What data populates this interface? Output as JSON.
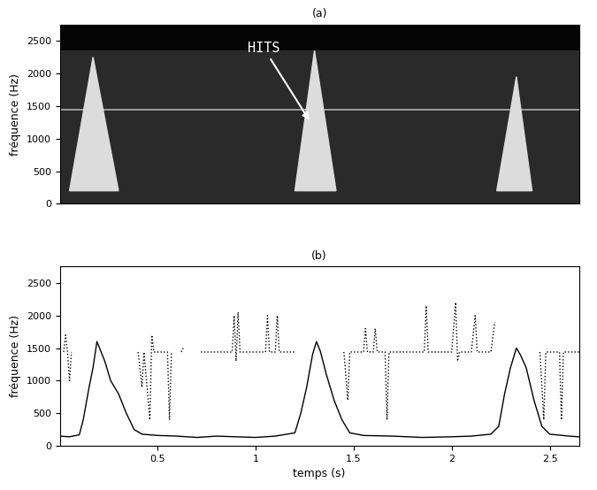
{
  "chart_data": [
    {
      "type": "spectrogram",
      "title": "(a)",
      "y_label": "fréquence (Hz)",
      "xlim": [
        0,
        2.65
      ],
      "ylim": [
        0,
        2750
      ],
      "yticks": [
        0,
        500,
        1000,
        1500,
        2000,
        2500
      ],
      "tick_labels": "y",
      "grid": false,
      "noise_top": 2350,
      "tone_frequency": 1440,
      "bursts": [
        {
          "t_start": 0.05,
          "t_peak": 0.17,
          "t_end": 0.3,
          "f_base": 200,
          "f_peak": 2250
        },
        {
          "t_start": 1.2,
          "t_peak": 1.3,
          "t_end": 1.41,
          "f_base": 200,
          "f_peak": 2350
        },
        {
          "t_start": 2.23,
          "t_peak": 2.33,
          "t_end": 2.41,
          "f_base": 200,
          "f_peak": 1950
        }
      ],
      "annotation": {
        "text": "HITS",
        "x": 1.28,
        "y": 1250
      }
    },
    {
      "type": "line",
      "title": "(b)",
      "x_label": "temps (s)",
      "y_label": "fréquence (Hz)",
      "xlim": [
        0,
        2.65
      ],
      "xticks": [
        0.5,
        1,
        1.5,
        2,
        2.5
      ],
      "ylim": [
        0,
        2750
      ],
      "yticks": [
        0,
        500,
        1000,
        1500,
        2000,
        2500
      ],
      "grid": false,
      "series": [
        {
          "color": "#000000",
          "line_style": "solid",
          "x": [
            0.0,
            0.05,
            0.1,
            0.12,
            0.15,
            0.17,
            0.19,
            0.21,
            0.23,
            0.26,
            0.3,
            0.34,
            0.38,
            0.42,
            0.5,
            0.6,
            0.7,
            0.8,
            0.9,
            1.0,
            1.1,
            1.2,
            1.23,
            1.26,
            1.29,
            1.31,
            1.33,
            1.36,
            1.4,
            1.44,
            1.48,
            1.55,
            1.7,
            1.85,
            2.0,
            2.1,
            2.2,
            2.24,
            2.27,
            2.3,
            2.33,
            2.35,
            2.38,
            2.42,
            2.46,
            2.5,
            2.6,
            2.65
          ],
          "values": [
            150,
            140,
            170,
            400,
            900,
            1200,
            1600,
            1450,
            1300,
            1000,
            800,
            500,
            250,
            180,
            160,
            150,
            130,
            150,
            140,
            130,
            150,
            200,
            500,
            900,
            1400,
            1600,
            1450,
            1100,
            700,
            400,
            200,
            160,
            150,
            130,
            140,
            150,
            180,
            300,
            800,
            1200,
            1500,
            1400,
            1200,
            700,
            300,
            180,
            150,
            140
          ]
        },
        {
          "color": "#000000",
          "line_style": "dotted",
          "x": [
            0.02,
            0.03,
            0.04,
            0.05,
            0.06,
            0.08,
            0.4,
            0.42,
            0.43,
            0.46,
            0.47,
            0.48,
            0.5,
            0.55,
            0.56,
            0.57,
            0.6,
            0.62,
            0.63,
            0.65,
            0.72,
            0.88,
            0.89,
            0.9,
            0.91,
            0.92,
            1.05,
            1.06,
            1.07,
            1.1,
            1.11,
            1.12,
            1.2,
            1.22,
            1.45,
            1.47,
            1.48,
            1.55,
            1.56,
            1.57,
            1.6,
            1.61,
            1.62,
            1.66,
            1.67,
            1.68,
            1.86,
            1.87,
            1.88,
            2.0,
            2.02,
            2.03,
            2.04,
            2.1,
            2.12,
            2.13,
            2.2,
            2.22,
            2.23,
            2.45,
            2.47,
            2.48,
            2.55,
            2.56,
            2.57,
            2.65
          ],
          "values": [
            1440,
            1700,
            1440,
            1000,
            1440,
            null,
            1440,
            900,
            1440,
            400,
            1700,
            1440,
            1440,
            1440,
            400,
            1440,
            null,
            1440,
            1500,
            null,
            1440,
            1440,
            2000,
            1300,
            2050,
            1440,
            1440,
            2000,
            1440,
            1440,
            2000,
            1440,
            1440,
            null,
            1440,
            700,
            1440,
            1440,
            1800,
            1440,
            1440,
            1800,
            1440,
            1440,
            400,
            1440,
            1440,
            2150,
            1440,
            1440,
            2200,
            1300,
            1440,
            1440,
            2000,
            1440,
            1440,
            1900,
            null,
            1440,
            400,
            1440,
            1440,
            400,
            1440,
            1440
          ]
        }
      ]
    }
  ]
}
